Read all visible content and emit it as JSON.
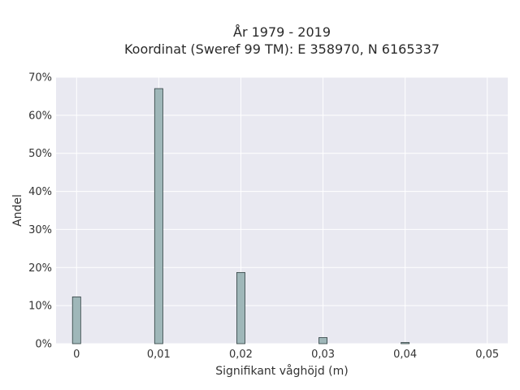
{
  "chart_data": {
    "type": "bar",
    "title_lines": [
      "År 1979 - 2019",
      "Koordinat (Sweref 99 TM): E 358970, N 6165337"
    ],
    "xlabel": "Signifikant våghöjd (m)",
    "ylabel": "Andel",
    "x": [
      0,
      0.01,
      0.02,
      0.03,
      0.04
    ],
    "values": [
      12.3,
      67.0,
      18.7,
      1.6,
      0.3
    ],
    "xlim": [
      -0.0025,
      0.0525
    ],
    "ylim": [
      0,
      70
    ],
    "x_ticks": [
      0,
      0.01,
      0.02,
      0.03,
      0.04,
      0.05
    ],
    "x_tick_labels": [
      "0",
      "0,01",
      "0,02",
      "0,03",
      "0,04",
      "0,05"
    ],
    "y_ticks": [
      0,
      10,
      20,
      30,
      40,
      50,
      60,
      70
    ],
    "y_tick_labels": [
      "0%",
      "10%",
      "20%",
      "30%",
      "40%",
      "50%",
      "60%",
      "70%"
    ],
    "bar_width": 0.001,
    "grid": true,
    "colors": {
      "bar_fill": "#9fb7b9",
      "bar_stroke": "#2f3f40",
      "plot_bg": "#e9e9f1",
      "grid": "#ffffff"
    }
  }
}
